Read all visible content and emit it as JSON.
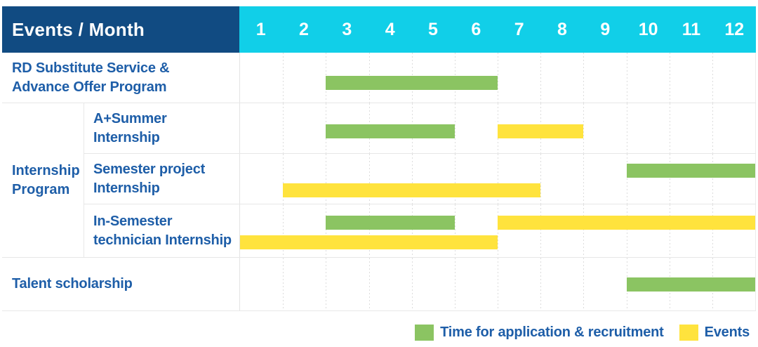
{
  "colors": {
    "navy": "#114B82",
    "cyan": "#11CFE8",
    "green": "#8BC462",
    "yellow": "#FFE33D",
    "label_blue": "#1E5EA8"
  },
  "chart_data": {
    "type": "bar",
    "subtype": "gantt",
    "title": "Events / Month",
    "months": [
      "1",
      "2",
      "3",
      "4",
      "5",
      "6",
      "7",
      "8",
      "9",
      "10",
      "11",
      "12"
    ],
    "x_axis_label": "Month",
    "x_range": [
      1,
      12
    ],
    "grid": "dashed-vertical",
    "legend_position": "bottom-right",
    "legend": [
      {
        "key": "application",
        "label": "Time for application & recruitment",
        "color": "#8BC462"
      },
      {
        "key": "event",
        "label": "Events",
        "color": "#FFE33D"
      }
    ],
    "group_label_lines": [
      "Internship",
      "Program"
    ],
    "rows": [
      {
        "label_lines": [
          "RD Substitute Service &",
          "Advance Offer Program"
        ],
        "group": null,
        "bars": [
          {
            "kind": "application",
            "start_month": 3,
            "end_month": 6,
            "lane": 0
          }
        ]
      },
      {
        "label_lines": [
          "A+Summer",
          "Internship"
        ],
        "group": "Internship Program",
        "bars": [
          {
            "kind": "application",
            "start_month": 3,
            "end_month": 5,
            "lane": 0
          },
          {
            "kind": "event",
            "start_month": 7,
            "end_month": 8,
            "lane": 0
          }
        ]
      },
      {
        "label_lines": [
          "Semester project",
          "Internship"
        ],
        "group": "Internship Program",
        "bars": [
          {
            "kind": "application",
            "start_month": 10,
            "end_month": 12,
            "lane": 0
          },
          {
            "kind": "event",
            "start_month": 2,
            "end_month": 7,
            "lane": 1
          }
        ]
      },
      {
        "label_lines": [
          "In-Semester",
          "technician Internship"
        ],
        "group": "Internship Program",
        "bars": [
          {
            "kind": "application",
            "start_month": 3,
            "end_month": 5,
            "lane": 0
          },
          {
            "kind": "event",
            "start_month": 7,
            "end_month": 12,
            "lane": 0
          },
          {
            "kind": "event",
            "start_month": 1,
            "end_month": 6,
            "lane": 1
          }
        ]
      },
      {
        "label_lines": [
          "Talent scholarship"
        ],
        "group": null,
        "bars": [
          {
            "kind": "application",
            "start_month": 10,
            "end_month": 12,
            "lane": 0
          }
        ]
      }
    ]
  }
}
